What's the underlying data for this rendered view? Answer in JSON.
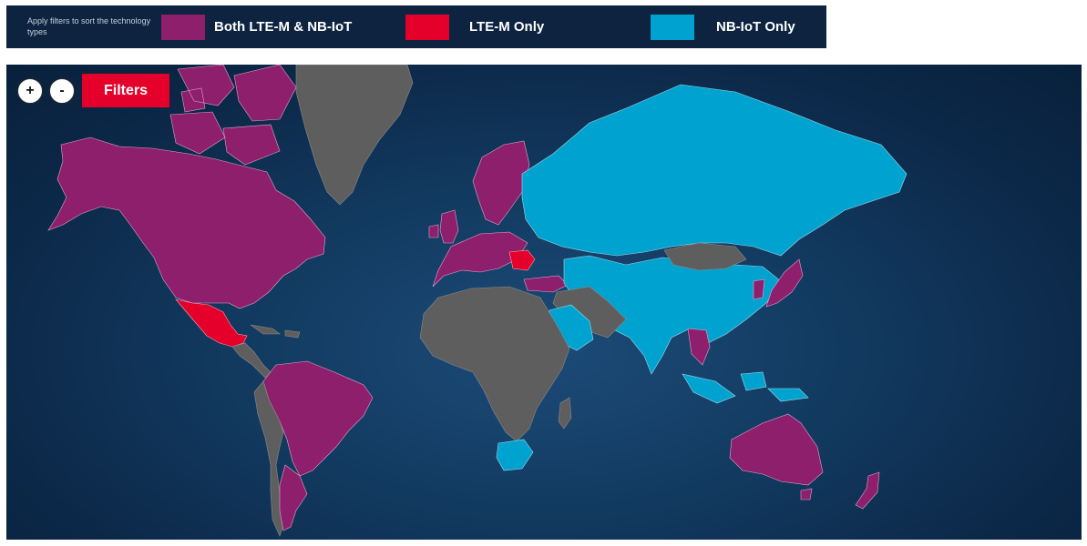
{
  "legend": {
    "instructions": "Apply filters to sort the technology types",
    "items": [
      {
        "label": "Both LTE-M & NB-IoT",
        "color": "#8e1f6c"
      },
      {
        "label": "LTE-M Only",
        "color": "#e4002b"
      },
      {
        "label": "NB-IoT Only",
        "color": "#00a3cf"
      }
    ]
  },
  "controls": {
    "zoom_in": "+",
    "zoom_out": "-",
    "filters": "Filters"
  },
  "colors": {
    "both": "#8e1f6c",
    "lte_m": "#e4002b",
    "nb_iot": "#00a3cf",
    "no_data": "#5e5e5e",
    "ocean": "#123a60"
  }
}
